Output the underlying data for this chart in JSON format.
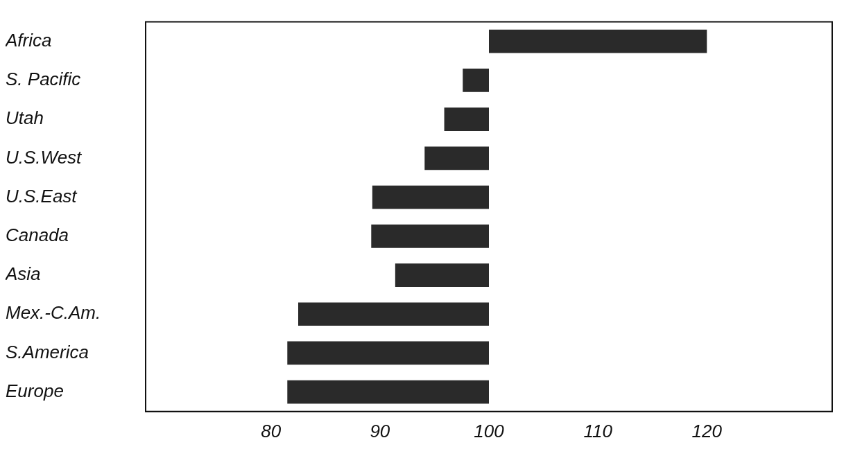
{
  "chart_data": {
    "type": "bar",
    "orientation": "horizontal",
    "categories": [
      "Africa",
      "S. Pacific",
      "Utah",
      "U.S.West",
      "U.S.East",
      "Canada",
      "Asia",
      "Mex.-C.Am.",
      "S.America",
      "Europe"
    ],
    "base": [
      100,
      100,
      100,
      100,
      100,
      100,
      100,
      100,
      100,
      100
    ],
    "values": [
      20,
      -2.4,
      -4.1,
      -5.9,
      -10.7,
      -10.8,
      -8.6,
      -17.5,
      -18.5,
      -18.5
    ],
    "color": "#2a2a2a",
    "xlim": [
      68.5,
      131.5
    ],
    "xticks": [
      80,
      90,
      100,
      110,
      120
    ],
    "grid": false,
    "legend": false
  }
}
